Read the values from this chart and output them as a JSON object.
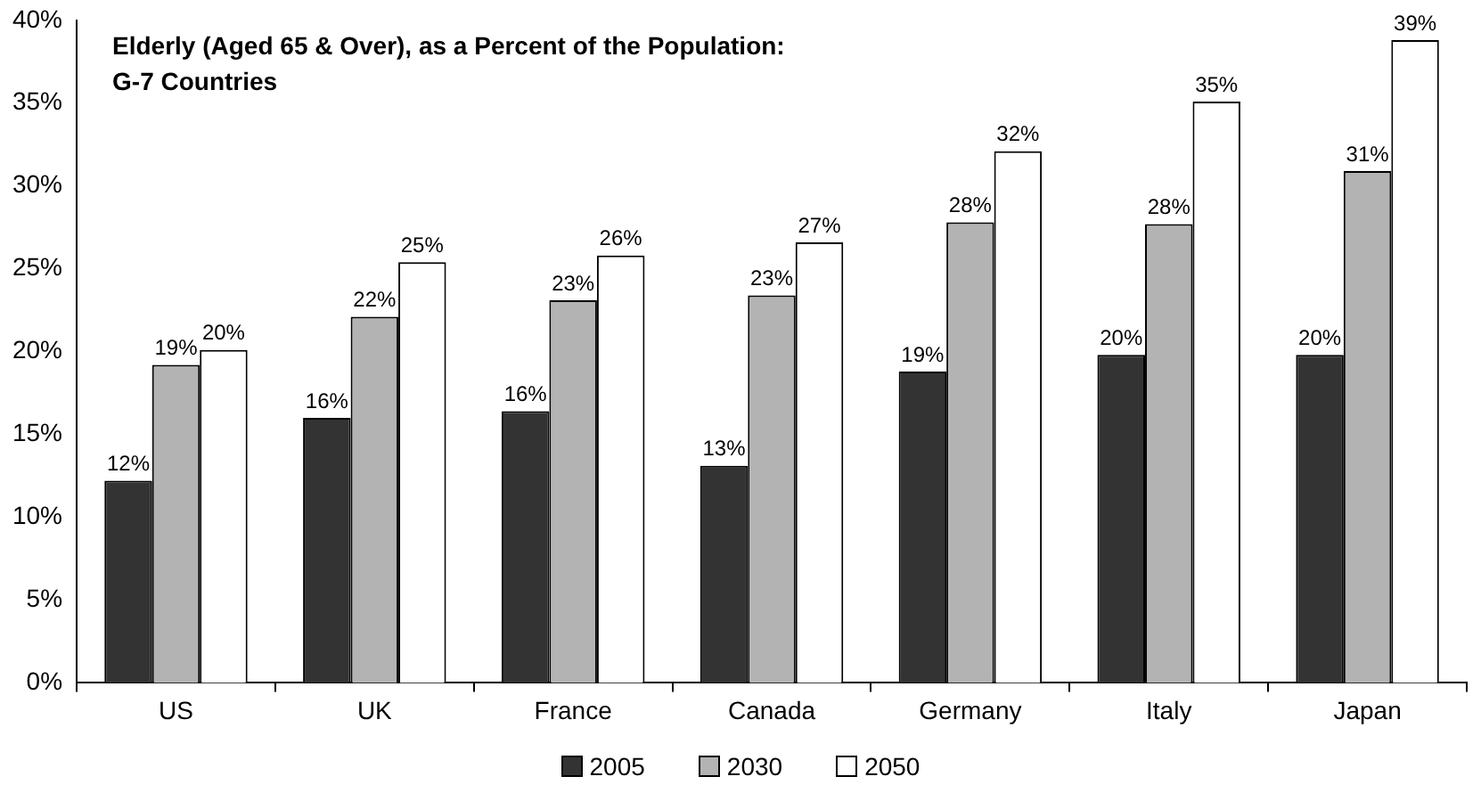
{
  "chart_data": {
    "type": "bar",
    "title": "Elderly (Aged 65 & Over), as a Percent of the Population: G-7 Countries",
    "categories": [
      "US",
      "UK",
      "France",
      "Canada",
      "Germany",
      "Italy",
      "Japan"
    ],
    "series": [
      {
        "name": "2005",
        "color": "#333333",
        "values": [
          12.2,
          16.0,
          16.4,
          13.1,
          18.8,
          19.8,
          19.8
        ],
        "value_labels": [
          "12%",
          "16%",
          "16%",
          "13%",
          "19%",
          "20%",
          "20%"
        ]
      },
      {
        "name": "2030",
        "color": "#b3b3b3",
        "values": [
          19.2,
          22.1,
          23.1,
          23.4,
          27.8,
          27.7,
          30.9
        ],
        "value_labels": [
          "19%",
          "22%",
          "23%",
          "23%",
          "28%",
          "28%",
          "31%"
        ]
      },
      {
        "name": "2050",
        "color": "#ffffff",
        "values": [
          20.1,
          25.4,
          25.8,
          26.6,
          32.1,
          35.1,
          38.8
        ],
        "value_labels": [
          "20%",
          "25%",
          "26%",
          "27%",
          "32%",
          "35%",
          "39%"
        ]
      }
    ],
    "ylim": [
      0,
      40
    ],
    "yticks": [
      {
        "value": 0,
        "label": "0%"
      },
      {
        "value": 5,
        "label": "5%"
      },
      {
        "value": 10,
        "label": "10%"
      },
      {
        "value": 15,
        "label": "15%"
      },
      {
        "value": 20,
        "label": "20%"
      },
      {
        "value": 25,
        "label": "25%"
      },
      {
        "value": 30,
        "label": "30%"
      },
      {
        "value": 35,
        "label": "35%"
      },
      {
        "value": 40,
        "label": "40%"
      }
    ],
    "grid": false,
    "legend": "bottom"
  }
}
